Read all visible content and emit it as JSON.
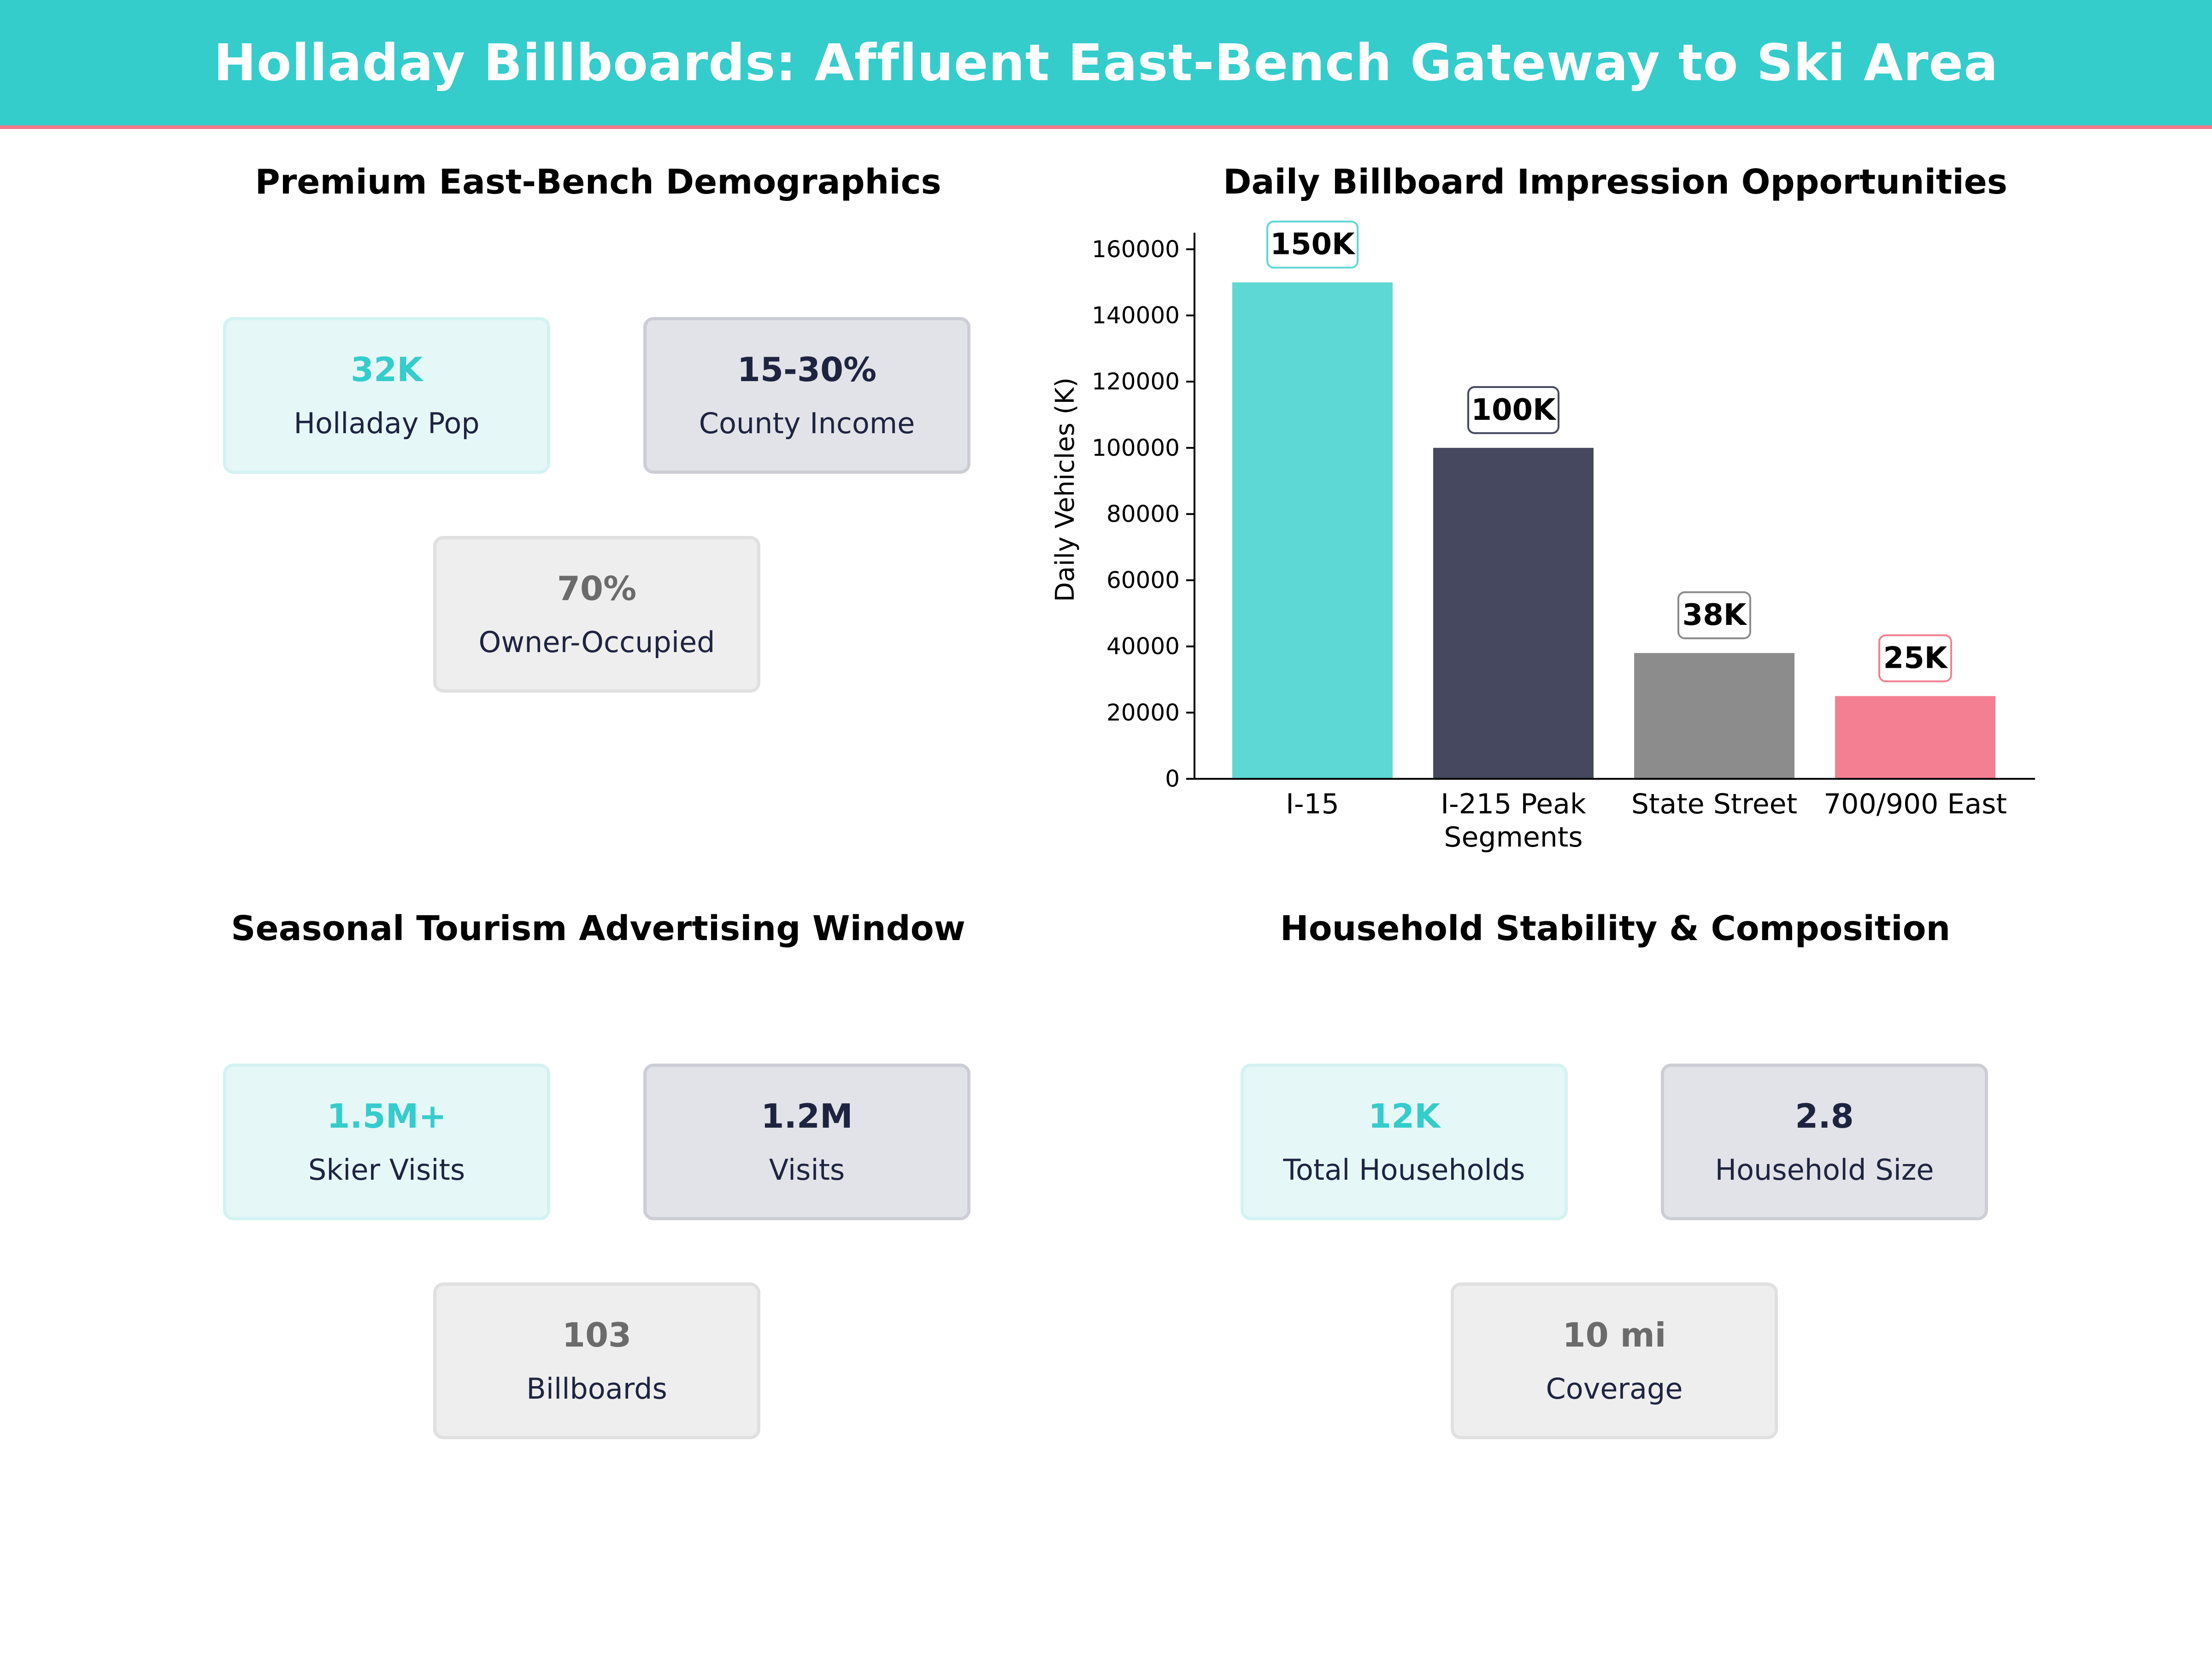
{
  "header": {
    "title": "Holladay Billboards: Affluent East-Bench Gateway to Ski Area"
  },
  "panels": {
    "demographics": {
      "title": "Premium East-Bench Demographics",
      "cards": [
        {
          "value": "32K",
          "label": "Holladay Pop"
        },
        {
          "value": "15-30%",
          "label": "County Income"
        },
        {
          "value": "70%",
          "label": "Owner-Occupied"
        }
      ]
    },
    "tourism": {
      "title": "Seasonal Tourism Advertising Window",
      "cards": [
        {
          "value": "1.5M+",
          "label": "Skier Visits"
        },
        {
          "value": "1.2M",
          "label": "Visits"
        },
        {
          "value": "103",
          "label": "Billboards"
        }
      ]
    },
    "households": {
      "title": "Household Stability & Composition",
      "cards": [
        {
          "value": "12K",
          "label": "Total Households"
        },
        {
          "value": "2.8",
          "label": "Household Size"
        },
        {
          "value": "10 mi",
          "label": "Coverage"
        }
      ]
    }
  },
  "colors": {
    "teal": "#35CCCC",
    "navy": "#1E2440",
    "gray": "#6B6B6B",
    "pink": "#F07A8A"
  },
  "chart_data": {
    "type": "bar",
    "title": "Daily Billboard Impression Opportunities",
    "ylabel": "Daily Vehicles (K)",
    "xlabel": "",
    "categories": [
      [
        "I-15"
      ],
      [
        "I-215 Peak",
        "Segments"
      ],
      [
        "State Street"
      ],
      [
        "700/900 East"
      ]
    ],
    "values": [
      150000,
      100000,
      38000,
      25000
    ],
    "data_labels": [
      "150K",
      "100K",
      "38K",
      "25K"
    ],
    "bar_colors": [
      "#5DD8D5",
      "#45485E",
      "#8C8C8C",
      "#F47F92"
    ],
    "label_border_colors": [
      "#5DD8D5",
      "#45485E",
      "#8C8C8C",
      "#F47F92"
    ],
    "ylim": [
      0,
      165000
    ],
    "yticks": [
      0,
      20000,
      40000,
      60000,
      80000,
      100000,
      120000,
      140000,
      160000
    ],
    "grid": false
  }
}
